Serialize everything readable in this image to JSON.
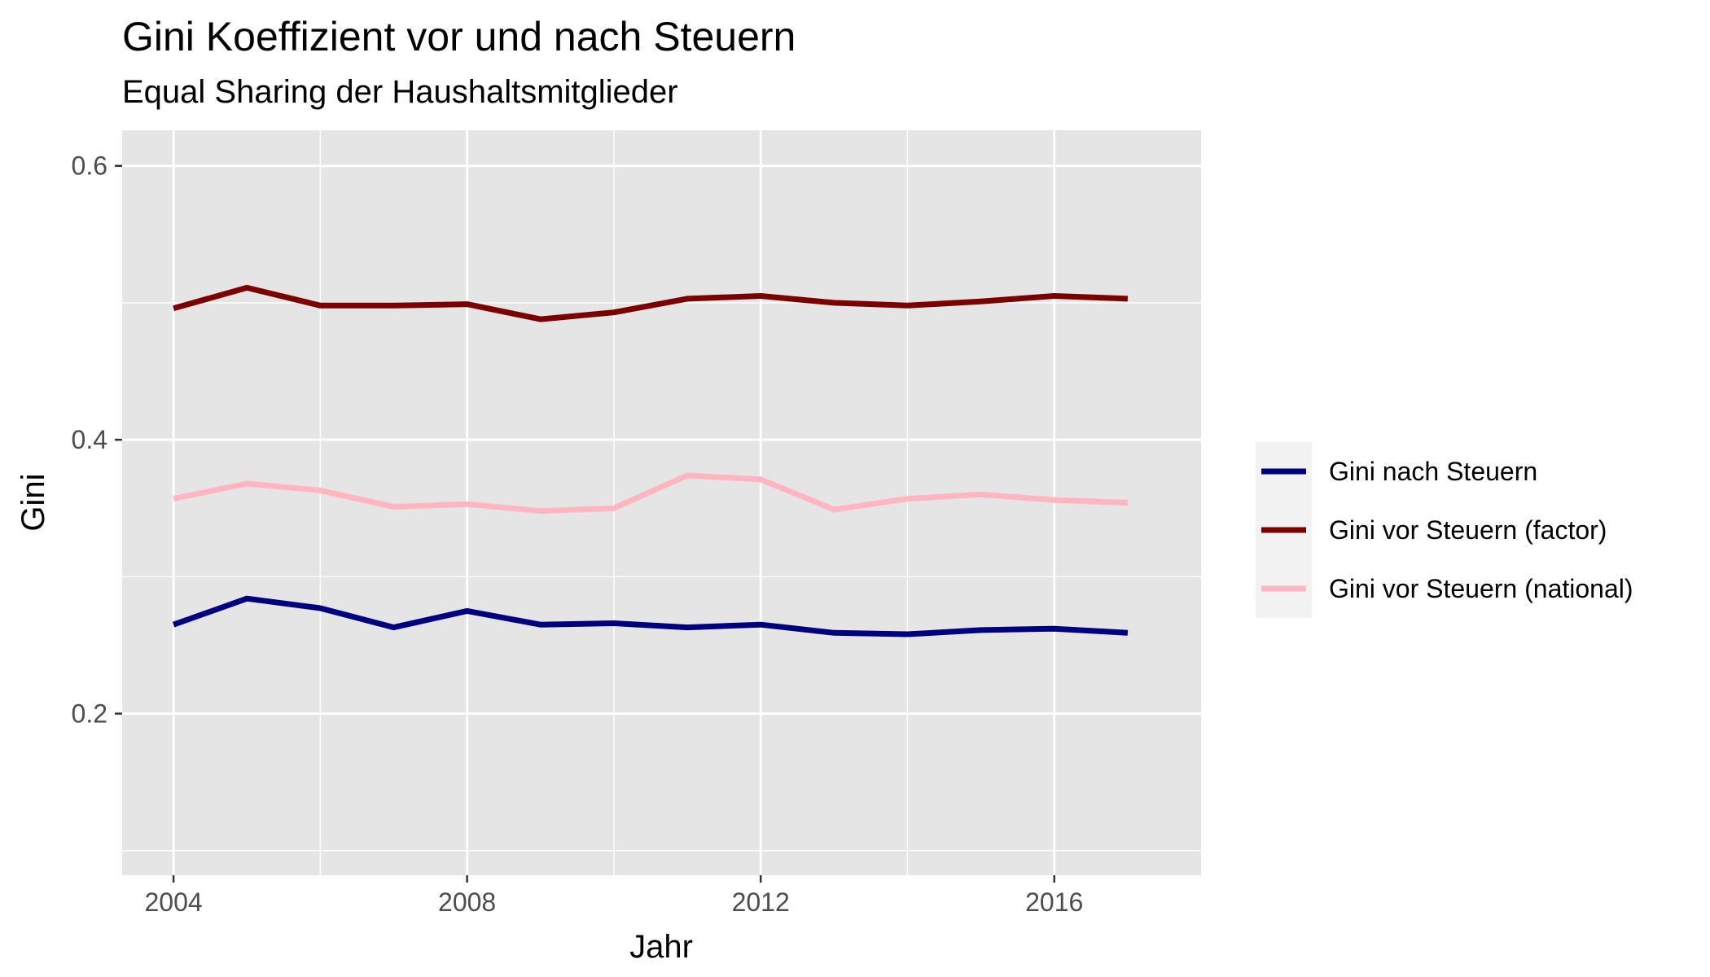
{
  "chart_data": {
    "type": "line",
    "title": "Gini Koeffizient vor und nach Steuern",
    "subtitle": "Equal Sharing der Haushaltsmitglieder",
    "xlabel": "Jahr",
    "ylabel": "Gini",
    "xlim": [
      2003.3,
      2018.0
    ],
    "ylim": [
      0.082,
      0.626
    ],
    "x_ticks": [
      2004,
      2008,
      2012,
      2016
    ],
    "x_tick_labels": [
      "2004",
      "2008",
      "2012",
      "2016"
    ],
    "x_minor_ticks": [
      2006,
      2010,
      2014
    ],
    "y_ticks": [
      0.2,
      0.4,
      0.6
    ],
    "y_tick_labels": [
      "0.2",
      "0.4",
      "0.6"
    ],
    "y_minor_ticks": [
      0.1,
      0.3,
      0.5
    ],
    "grid": true,
    "legend_position": "right",
    "x": [
      2004,
      2005,
      2006,
      2007,
      2008,
      2009,
      2010,
      2011,
      2012,
      2013,
      2014,
      2015,
      2016,
      2017
    ],
    "series": [
      {
        "name": "Gini nach Steuern",
        "color": "#00007f",
        "values": [
          0.265,
          0.284,
          0.277,
          0.263,
          0.275,
          0.265,
          0.266,
          0.263,
          0.265,
          0.259,
          0.258,
          0.261,
          0.262,
          0.259
        ]
      },
      {
        "name": "Gini vor Steuern (factor)",
        "color": "#7a0000",
        "values": [
          0.496,
          0.511,
          0.498,
          0.498,
          0.499,
          0.488,
          0.493,
          0.503,
          0.505,
          0.5,
          0.498,
          0.501,
          0.505,
          0.503
        ]
      },
      {
        "name": "Gini vor Steuern (national)",
        "color": "#ffb6c1",
        "values": [
          0.357,
          0.368,
          0.363,
          0.351,
          0.353,
          0.348,
          0.35,
          0.374,
          0.371,
          0.349,
          0.357,
          0.36,
          0.356,
          0.354
        ]
      }
    ]
  }
}
